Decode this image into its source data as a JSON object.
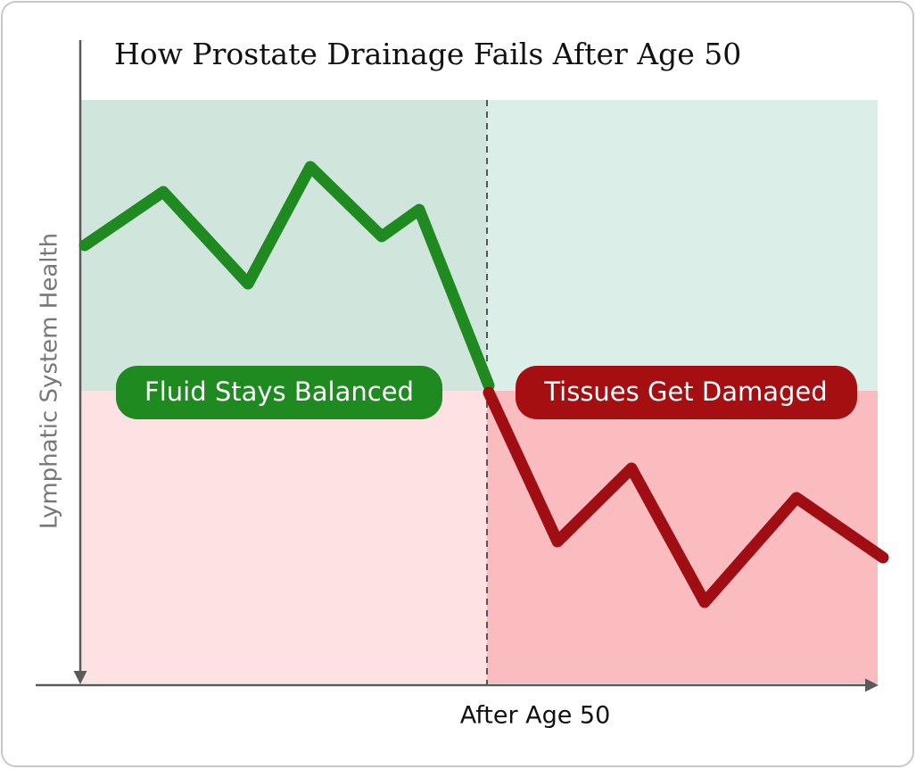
{
  "title": "How Prostate Drainage Fails After Age 50",
  "y_axis_label": "Lymphatic System Health",
  "x_axis_label": "After Age 50",
  "zones": {
    "left_label": "Fluid Stays Balanced",
    "right_label": "Tissues Get Damaged"
  }
}
